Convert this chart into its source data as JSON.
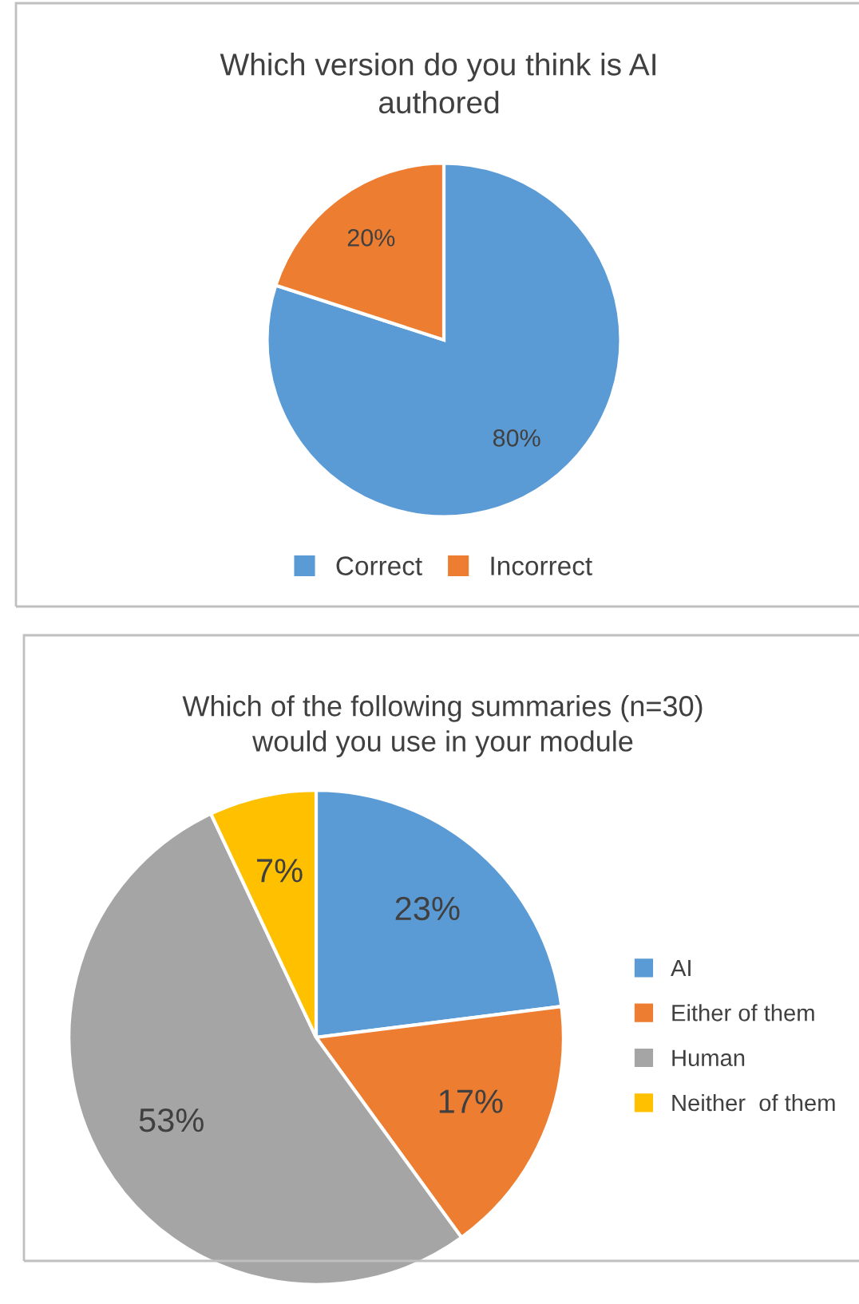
{
  "chart_data": [
    {
      "type": "pie",
      "title": "Which version do you think is AI\nauthored",
      "categories": [
        "Correct",
        "Incorrect"
      ],
      "values": [
        80,
        20
      ],
      "colors": [
        "#5b9bd5",
        "#ed7d31"
      ],
      "value_labels": [
        "80%",
        "20%"
      ],
      "legend": "bottom"
    },
    {
      "type": "pie",
      "title": "Which of the following summaries (n=30)\nwould you use in your module",
      "categories": [
        "AI",
        "Either of them",
        "Human",
        "Neither  of them"
      ],
      "values": [
        23,
        17,
        53,
        7
      ],
      "colors": [
        "#5b9bd5",
        "#ed7d31",
        "#a5a5a5",
        "#ffc000"
      ],
      "value_labels": [
        "23%",
        "17%",
        "53%",
        "7%"
      ],
      "legend": "right"
    }
  ]
}
